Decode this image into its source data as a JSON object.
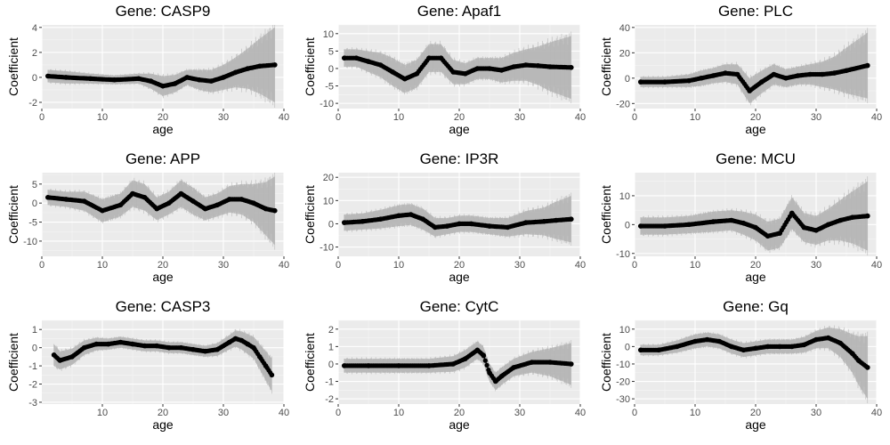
{
  "chart_data": [
    {
      "type": "line",
      "title": "Gene: CASP9",
      "xlabel": "age",
      "ylabel": "Coefficient",
      "xlim": [
        0,
        40
      ],
      "ylim": [
        -2.5,
        4.2
      ],
      "xticks": [
        0,
        10,
        20,
        30,
        40
      ],
      "yticks": [
        -2,
        0,
        2,
        4
      ],
      "grid": true,
      "series": [
        {
          "x": [
            1,
            4,
            8,
            12,
            16,
            18,
            20,
            22,
            24,
            26,
            28,
            30,
            32,
            34,
            36,
            38.5
          ],
          "values": [
            0.1,
            0.0,
            -0.1,
            -0.2,
            -0.1,
            -0.3,
            -0.7,
            -0.5,
            0.0,
            -0.2,
            -0.3,
            0.0,
            0.4,
            0.7,
            0.9,
            1.0
          ],
          "band": [
            0.5,
            0.5,
            0.4,
            0.35,
            0.4,
            0.6,
            0.8,
            0.7,
            0.6,
            0.8,
            0.9,
            1.0,
            1.2,
            1.6,
            2.2,
            3.0
          ]
        }
      ]
    },
    {
      "type": "line",
      "title": "Gene: Apaf1",
      "xlabel": "age",
      "ylabel": "Coefficient",
      "xlim": [
        0,
        40
      ],
      "ylim": [
        -11.5,
        12.5
      ],
      "xticks": [
        0,
        10,
        20,
        30,
        40
      ],
      "yticks": [
        -10,
        -5,
        0,
        5,
        10
      ],
      "grid": true,
      "series": [
        {
          "x": [
            1,
            3,
            5,
            7,
            9,
            11,
            13,
            15,
            17,
            19,
            21,
            23,
            25,
            27,
            29,
            31,
            33,
            35,
            38.5
          ],
          "values": [
            3.0,
            3.0,
            2.0,
            1.0,
            -1.0,
            -3.0,
            -1.5,
            3.0,
            3.0,
            -1.0,
            -1.5,
            0.0,
            0.0,
            -0.5,
            0.5,
            1.0,
            0.8,
            0.5,
            0.3
          ],
          "band": [
            2.5,
            2.5,
            3.0,
            3.5,
            4.0,
            4.0,
            4.0,
            4.0,
            4.0,
            3.5,
            3.0,
            3.0,
            3.0,
            3.5,
            4.0,
            4.5,
            5.5,
            7.0,
            9.0
          ]
        }
      ]
    },
    {
      "type": "line",
      "title": "Gene: PLC",
      "xlabel": "age",
      "ylabel": "Coefficient",
      "xlim": [
        0,
        40
      ],
      "ylim": [
        -24,
        42
      ],
      "xticks": [
        0,
        10,
        20,
        30,
        40
      ],
      "yticks": [
        -20,
        0,
        20,
        40
      ],
      "grid": true,
      "series": [
        {
          "x": [
            1,
            5,
            9,
            11,
            13,
            15,
            17,
            19,
            21,
            23,
            25,
            27,
            29,
            31,
            33,
            35,
            38.5
          ],
          "values": [
            -3,
            -3,
            -2,
            0,
            2,
            4,
            3,
            -10,
            -3,
            3,
            0,
            2,
            3,
            3,
            4,
            6,
            10
          ],
          "band": [
            4,
            4,
            5,
            6,
            6,
            7,
            8,
            10,
            9,
            8,
            7,
            7,
            8,
            10,
            13,
            18,
            26
          ]
        }
      ]
    },
    {
      "type": "line",
      "title": "Gene: APP",
      "xlabel": "age",
      "ylabel": "Coefficient",
      "xlim": [
        0,
        40
      ],
      "ylim": [
        -14,
        8
      ],
      "xticks": [
        0,
        10,
        20,
        30,
        40
      ],
      "yticks": [
        -10,
        -5,
        0,
        5
      ],
      "grid": true,
      "series": [
        {
          "x": [
            1,
            4,
            7,
            10,
            13,
            15,
            17,
            19,
            21,
            23,
            25,
            27,
            29,
            31,
            33,
            35,
            37,
            38.5
          ],
          "values": [
            1.5,
            1.0,
            0.5,
            -2.0,
            -0.5,
            2.5,
            1.5,
            -1.5,
            0.0,
            2.5,
            0.5,
            -1.5,
            -0.5,
            1.0,
            1.0,
            0.0,
            -1.5,
            -2.0
          ],
          "band": [
            2.0,
            2.0,
            2.5,
            3.0,
            3.0,
            3.5,
            3.5,
            3.0,
            3.0,
            3.5,
            3.5,
            3.0,
            3.0,
            3.5,
            4.0,
            5.0,
            7.0,
            9.0
          ]
        }
      ]
    },
    {
      "type": "line",
      "title": "Gene: IP3R",
      "xlabel": "age",
      "ylabel": "Coefficient",
      "xlim": [
        0,
        40
      ],
      "ylim": [
        -14,
        22
      ],
      "xticks": [
        0,
        10,
        20,
        30,
        40
      ],
      "yticks": [
        -10,
        0,
        10,
        20
      ],
      "grid": true,
      "series": [
        {
          "x": [
            1,
            4,
            7,
            10,
            12,
            14,
            16,
            18,
            20,
            22,
            25,
            28,
            31,
            34,
            36,
            38.5
          ],
          "values": [
            0.5,
            1.0,
            2.0,
            3.5,
            4.0,
            2.0,
            -1.5,
            -1.0,
            0.0,
            0.0,
            -1.0,
            -1.5,
            0.5,
            1.0,
            1.5,
            2.0
          ],
          "band": [
            3.5,
            3.5,
            4.0,
            4.5,
            4.5,
            4.5,
            4.0,
            3.5,
            3.5,
            3.5,
            3.5,
            4.0,
            5.0,
            6.0,
            8.0,
            10.0
          ]
        }
      ]
    },
    {
      "type": "line",
      "title": "Gene: MCU",
      "xlabel": "age",
      "ylabel": "Coefficient",
      "xlim": [
        0,
        40
      ],
      "ylim": [
        -11,
        18
      ],
      "xticks": [
        0,
        10,
        20,
        30,
        40
      ],
      "yticks": [
        -10,
        0,
        10
      ],
      "grid": true,
      "series": [
        {
          "x": [
            1,
            5,
            9,
            13,
            16,
            18,
            20,
            22,
            24,
            26,
            28,
            30,
            32,
            34,
            36,
            38.5
          ],
          "values": [
            -0.5,
            -0.5,
            0.0,
            1.0,
            1.5,
            0.5,
            -1.0,
            -4.0,
            -3.0,
            4.0,
            -1.0,
            -2.0,
            0.0,
            1.5,
            2.5,
            3.0
          ],
          "band": [
            3.0,
            3.0,
            3.0,
            3.5,
            3.5,
            4.0,
            4.5,
            5.0,
            5.0,
            5.5,
            5.0,
            5.0,
            5.5,
            7.0,
            9.0,
            12.0
          ]
        }
      ]
    },
    {
      "type": "line",
      "title": "Gene: CASP3",
      "xlabel": "age",
      "ylabel": "Coefficient",
      "xlim": [
        0,
        40
      ],
      "ylim": [
        -3.1,
        1.5
      ],
      "xticks": [
        10,
        20,
        30,
        40
      ],
      "yticks": [
        -3,
        -2,
        -1,
        0,
        1
      ],
      "grid": true,
      "series": [
        {
          "x": [
            2,
            3,
            5,
            7,
            9,
            11,
            13,
            15,
            17,
            19,
            21,
            23,
            25,
            27,
            29,
            31,
            32,
            33,
            34,
            35,
            36,
            37,
            38
          ],
          "values": [
            -0.4,
            -0.7,
            -0.5,
            0.0,
            0.2,
            0.2,
            0.3,
            0.2,
            0.1,
            0.1,
            0.0,
            0.0,
            -0.1,
            -0.2,
            -0.1,
            0.3,
            0.5,
            0.4,
            0.2,
            0.0,
            -0.5,
            -1.0,
            -1.5
          ],
          "band": [
            0.6,
            0.5,
            0.45,
            0.4,
            0.35,
            0.3,
            0.3,
            0.3,
            0.3,
            0.3,
            0.3,
            0.3,
            0.3,
            0.3,
            0.35,
            0.4,
            0.45,
            0.5,
            0.55,
            0.6,
            0.7,
            0.8,
            0.9
          ]
        }
      ]
    },
    {
      "type": "line",
      "title": "Gene: CytC",
      "xlabel": "age",
      "ylabel": "Coefficient",
      "xlim": [
        0,
        40
      ],
      "ylim": [
        -2.3,
        2.5
      ],
      "xticks": [
        0,
        10,
        20,
        30,
        40
      ],
      "yticks": [
        -2,
        -1,
        0,
        1,
        2
      ],
      "grid": true,
      "series": [
        {
          "x": [
            1,
            5,
            10,
            15,
            19,
            21,
            23,
            24,
            25,
            26,
            27,
            29,
            32,
            35,
            38.5
          ],
          "values": [
            -0.1,
            -0.1,
            -0.1,
            -0.1,
            0.0,
            0.3,
            0.8,
            0.5,
            -0.5,
            -1.0,
            -0.7,
            -0.2,
            0.1,
            0.1,
            0.0
          ],
          "band": [
            0.4,
            0.4,
            0.4,
            0.4,
            0.45,
            0.5,
            0.5,
            0.5,
            0.5,
            0.5,
            0.5,
            0.5,
            0.6,
            0.8,
            1.2
          ]
        }
      ]
    },
    {
      "type": "line",
      "title": "Gene: Gq",
      "xlabel": "age",
      "ylabel": "Coefficient",
      "xlim": [
        0,
        40
      ],
      "ylim": [
        -33,
        15
      ],
      "xticks": [
        0,
        10,
        20,
        30,
        40
      ],
      "yticks": [
        -30,
        -20,
        -10,
        0,
        10
      ],
      "grid": true,
      "series": [
        {
          "x": [
            1,
            4,
            7,
            10,
            12,
            14,
            16,
            18,
            20,
            22,
            24,
            26,
            28,
            30,
            32,
            34,
            36,
            37,
            38.5
          ],
          "values": [
            -2,
            -2,
            0,
            3,
            4,
            3,
            0,
            -2,
            -1,
            0,
            0,
            0,
            1,
            4,
            5,
            2,
            -4,
            -8,
            -12
          ],
          "band": [
            3,
            3,
            3.5,
            4,
            4,
            4,
            4,
            4,
            4,
            4,
            4,
            4,
            4.5,
            5,
            6,
            8,
            11,
            14,
            18
          ]
        }
      ]
    }
  ]
}
